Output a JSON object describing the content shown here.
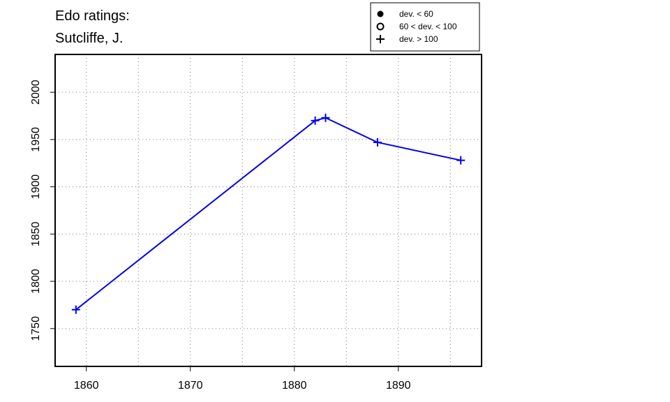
{
  "chart_data": {
    "type": "line",
    "title_lines": [
      "Edo ratings:",
      "Sutcliffe, J."
    ],
    "xlabel": "",
    "ylabel": "",
    "xlim": [
      1857,
      1898
    ],
    "ylim": [
      1710,
      2040
    ],
    "x_ticks": [
      1860,
      1870,
      1880,
      1890
    ],
    "y_ticks": [
      1750,
      1800,
      1850,
      1900,
      1950,
      2000
    ],
    "x_grid": [
      1860,
      1865,
      1870,
      1875,
      1880,
      1885,
      1890,
      1895
    ],
    "y_grid": [
      1750,
      1800,
      1850,
      1900,
      1950,
      2000
    ],
    "grid": true,
    "legend_position": "top-right",
    "legend": [
      {
        "marker": "filled-circle",
        "label": "dev. < 60"
      },
      {
        "marker": "open-circle",
        "label": "60 < dev. < 100"
      },
      {
        "marker": "plus",
        "label": "dev. > 100"
      }
    ],
    "series": [
      {
        "color": "#0000ee",
        "marker": "plus",
        "x": [
          1859,
          1882,
          1883,
          1888,
          1896
        ],
        "y": [
          1770,
          1970,
          1973,
          1947,
          1928
        ]
      }
    ]
  }
}
